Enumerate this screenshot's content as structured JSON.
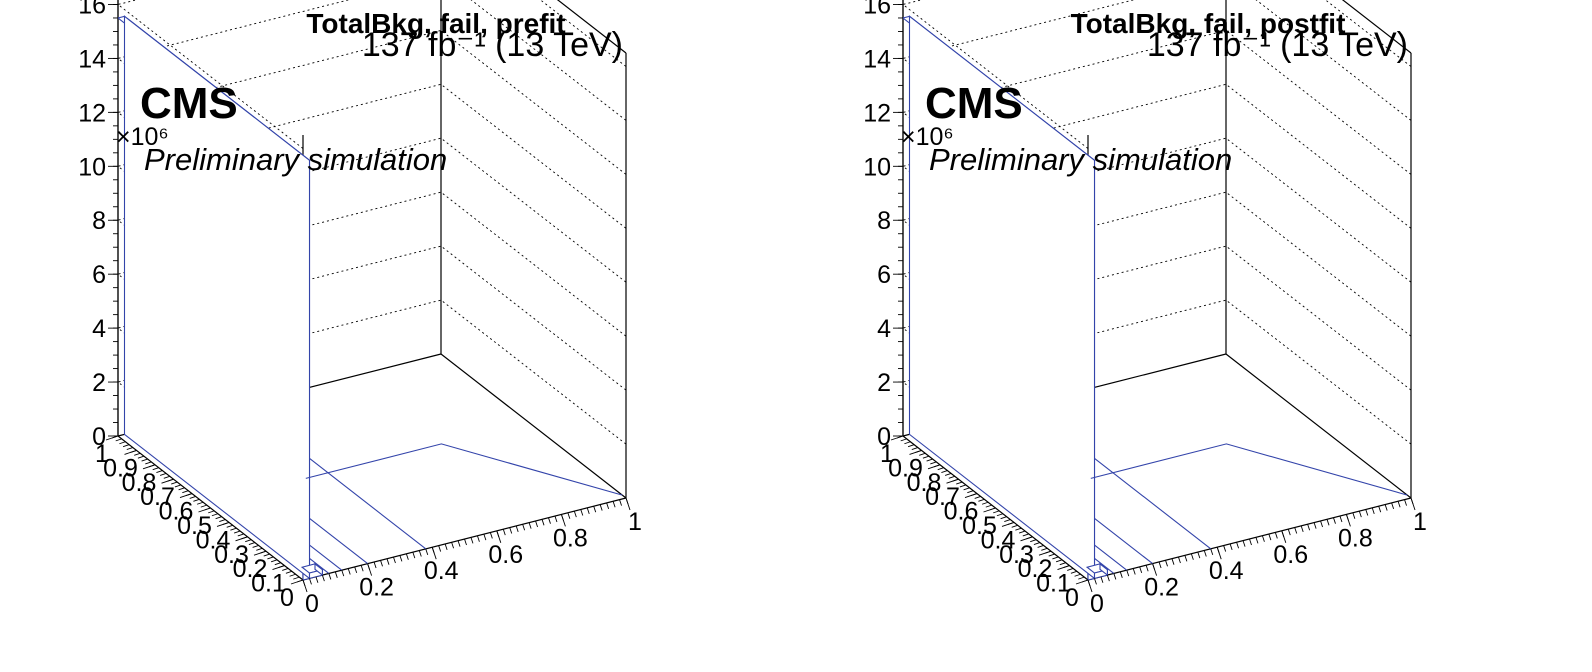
{
  "lumi_label": "137 fb⁻¹ (13 TeV)",
  "cms_label": "CMS",
  "extra_label": "Preliminary simulation",
  "z_multiplier": "×10⁶",
  "panels": [
    {
      "id": "prefit",
      "title": "TotalBkg, fail, prefit"
    },
    {
      "id": "postfit",
      "title": "TotalBkg, fail, postfit"
    }
  ],
  "chart_data": [
    {
      "type": "lego",
      "title": "TotalBkg, fail, prefit",
      "x_ticks": [
        "0",
        "0.2",
        "0.4",
        "0.6",
        "0.8",
        "1"
      ],
      "y_ticks": [
        "0",
        "0.1",
        "0.2",
        "0.3",
        "0.4",
        "0.5",
        "0.6",
        "0.7",
        "0.8",
        "0.9",
        "1"
      ],
      "z_ticks": [
        "0",
        "2",
        "4",
        "6",
        "8",
        "10",
        "12",
        "14",
        "16"
      ],
      "zlim": [
        0,
        16.5
      ],
      "z_scale": 1000000,
      "grid": true,
      "bins": [
        {
          "x": [
            0.0,
            0.02
          ],
          "y": [
            0.0,
            1.0
          ],
          "z": 15.5
        },
        {
          "x": [
            0.02,
            0.06
          ],
          "y": [
            0.0,
            0.04
          ],
          "z": 0.2
        }
      ]
    },
    {
      "type": "lego",
      "title": "TotalBkg, fail, postfit",
      "x_ticks": [
        "0",
        "0.2",
        "0.4",
        "0.6",
        "0.8",
        "1"
      ],
      "y_ticks": [
        "0",
        "0.1",
        "0.2",
        "0.3",
        "0.4",
        "0.5",
        "0.6",
        "0.7",
        "0.8",
        "0.9",
        "1"
      ],
      "z_ticks": [
        "0",
        "2",
        "4",
        "6",
        "8",
        "10",
        "12",
        "14",
        "16"
      ],
      "zlim": [
        0,
        16.5
      ],
      "z_scale": 1000000,
      "grid": true,
      "bins": [
        {
          "x": [
            0.0,
            0.02
          ],
          "y": [
            0.0,
            1.0
          ],
          "z": 15.5
        },
        {
          "x": [
            0.02,
            0.06
          ],
          "y": [
            0.0,
            0.04
          ],
          "z": 0.2
        }
      ]
    }
  ]
}
